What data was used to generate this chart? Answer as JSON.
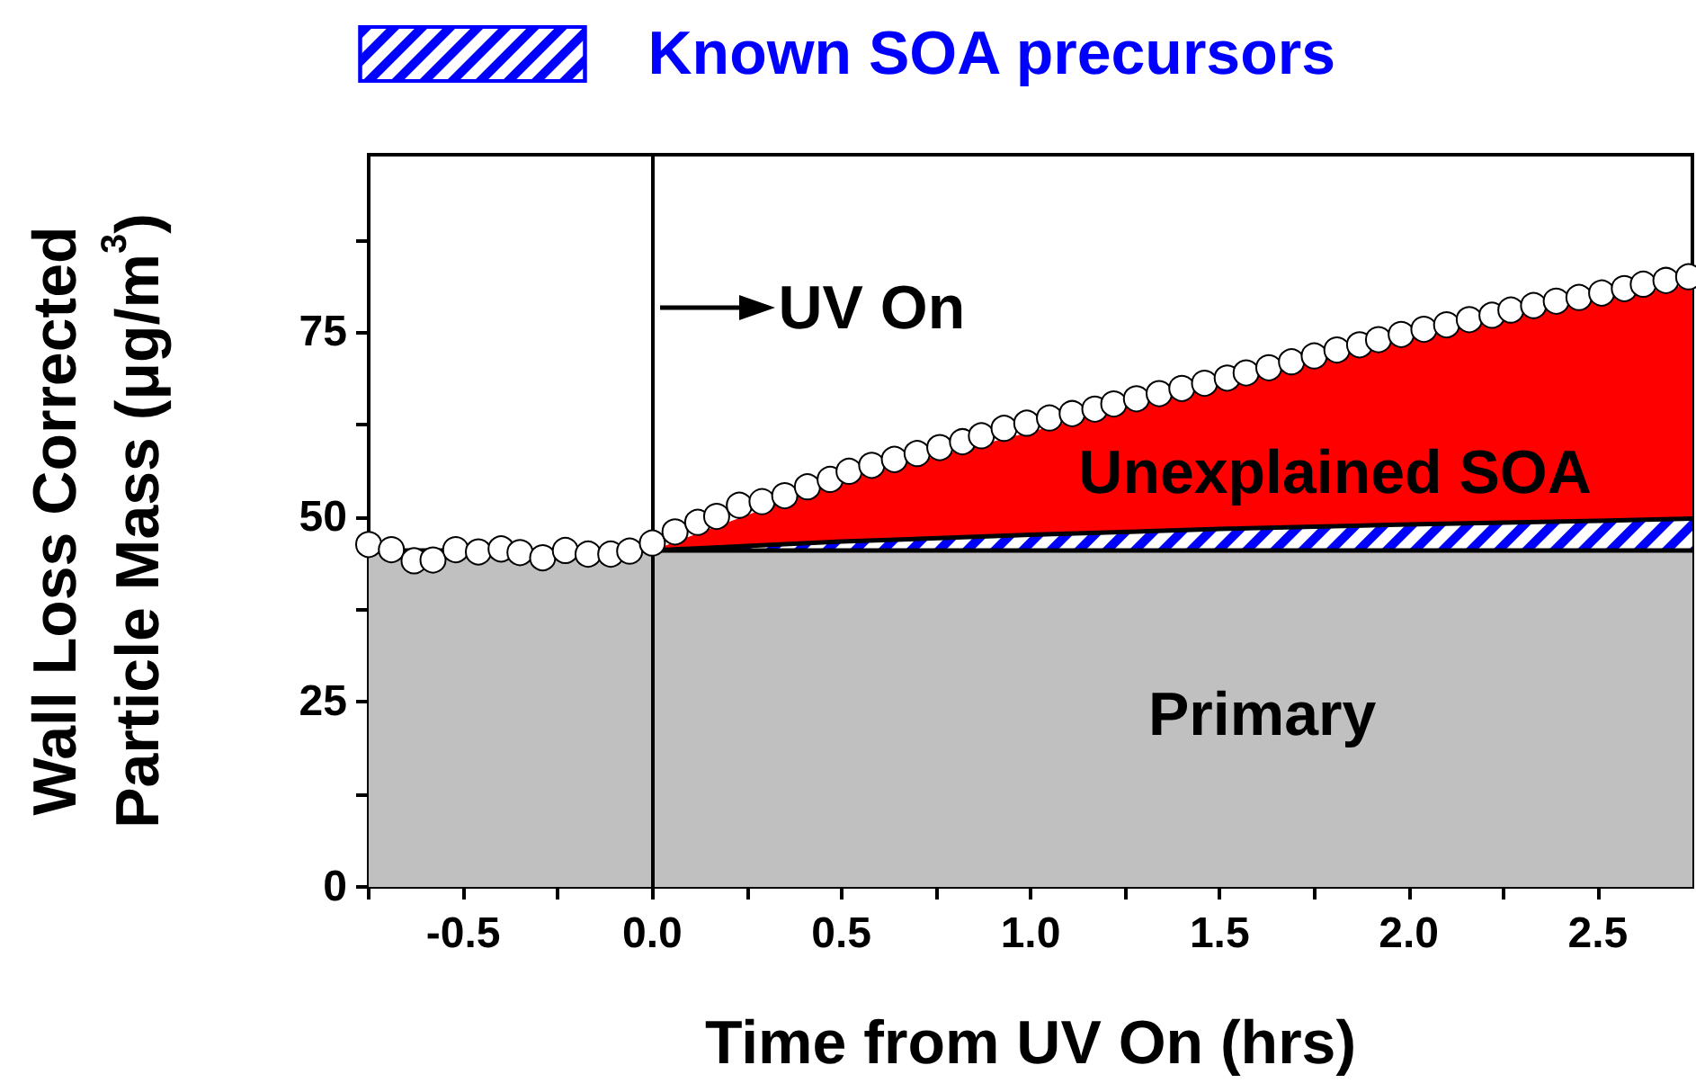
{
  "chart_data": {
    "type": "area",
    "xlabel": "Time from UV On (hrs)",
    "ylabel": "Wall Loss Corrected\nParticle Mass (μg/m$^{3}$)",
    "xlim": [
      -0.75,
      2.75
    ],
    "ylim": [
      0,
      99
    ],
    "xticks": [
      {
        "value": -0.75,
        "label": null
      },
      -0.5,
      {
        "value": -0.25,
        "label": null
      },
      {
        "value": 0,
        "label": "0.0"
      },
      {
        "value": 0.25,
        "label": null
      },
      0.5,
      {
        "value": 0.75,
        "label": null
      },
      {
        "value": 1,
        "label": "1.0"
      },
      {
        "value": 1.25,
        "label": null
      },
      1.5,
      {
        "value": 1.75,
        "label": null
      },
      {
        "value": 2,
        "label": "2.0"
      },
      {
        "value": 2.25,
        "label": null
      },
      2.5
    ],
    "yticks": [
      0,
      {
        "value": 12.5,
        "label": null
      },
      25,
      {
        "value": 37.5,
        "label": null
      },
      50,
      {
        "value": 62.5,
        "label": null
      },
      75,
      {
        "value": 87.5,
        "label": null
      }
    ],
    "legend": "top",
    "grid": false,
    "series": [
      {
        "name": "Unexplained SOA",
        "color": "#ff0000",
        "x": [
          0,
          0.5,
          1,
          1.5,
          2,
          2.5,
          2.75
        ],
        "values": [
          45.5,
          55,
          61.5,
          68.5,
          74.5,
          79.5,
          81.5
        ]
      },
      {
        "name": "Known SOA precursors",
        "color": "#0000ff",
        "x": [
          0,
          0.5,
          1,
          1.5,
          2,
          2.5,
          2.75
        ],
        "values": [
          45.5,
          46.7,
          47.6,
          48.4,
          49,
          49.5,
          49.8
        ]
      },
      {
        "name": "Primary",
        "color": "#c0c0c0",
        "x": [
          -0.75,
          2.75
        ],
        "values": [
          45.5,
          45.5
        ]
      },
      {
        "type": "scatter",
        "color": "#ffffff",
        "marker": "circle",
        "x": [
          -0.75,
          -0.69,
          -0.63,
          -0.58,
          -0.52,
          -0.46,
          -0.4,
          -0.35,
          -0.29,
          -0.23,
          -0.17,
          -0.11,
          -0.06,
          0,
          0.06,
          0.12,
          0.17,
          0.23,
          0.29,
          0.35,
          0.41,
          0.47,
          0.52,
          0.58,
          0.64,
          0.7,
          0.76,
          0.82,
          0.87,
          0.93,
          0.99,
          1.05,
          1.11,
          1.17,
          1.22,
          1.28,
          1.34,
          1.4,
          1.46,
          1.52,
          1.57,
          1.63,
          1.69,
          1.75,
          1.81,
          1.87,
          1.92,
          1.98,
          2.04,
          2.1,
          2.16,
          2.22,
          2.27,
          2.33,
          2.39,
          2.45,
          2.51,
          2.57,
          2.62,
          2.68,
          2.74
        ],
        "values": [
          46.3,
          45.6,
          44.1,
          44.2,
          45.6,
          45.3,
          45.7,
          45.2,
          44.5,
          45.5,
          45,
          45,
          45.4,
          46.5,
          48,
          49.3,
          50.1,
          51.6,
          52.1,
          52.9,
          54.1,
          55.1,
          56.2,
          57,
          57.8,
          58.6,
          59.4,
          60.2,
          61,
          62,
          62.7,
          63.4,
          64,
          64.6,
          65.3,
          66,
          66.7,
          67.4,
          68.1,
          68.8,
          69.5,
          70.2,
          71,
          71.8,
          72.6,
          73.3,
          74,
          74.7,
          75.4,
          76,
          76.7,
          77.3,
          78,
          78.6,
          79.2,
          79.7,
          80.3,
          80.9,
          81.5,
          82,
          82.5
        ]
      }
    ],
    "ref_lines": [
      {
        "axis": "x",
        "value": 0,
        "label": "UV On"
      }
    ]
  }
}
